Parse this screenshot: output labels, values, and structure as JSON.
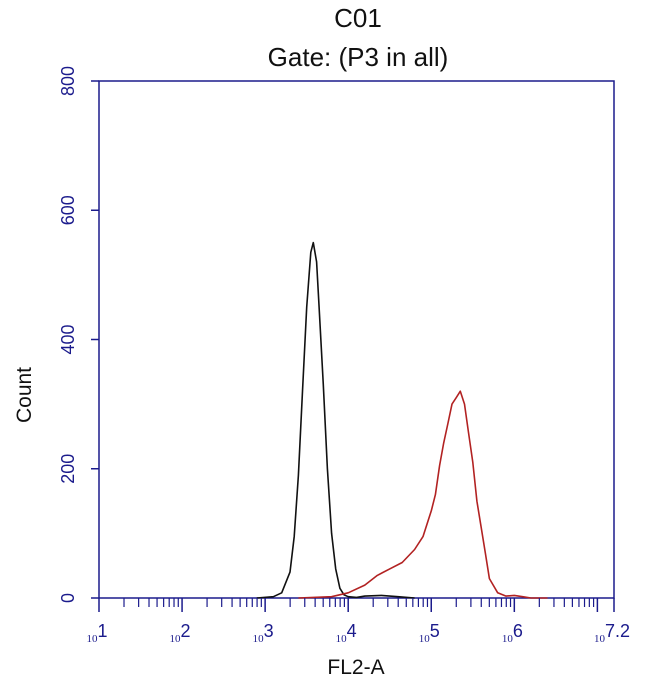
{
  "chart_data": {
    "type": "line",
    "title": "C01",
    "subtitle": "Gate: (P3 in all)",
    "xlabel": "FL2-A",
    "ylabel": "Count",
    "x_scale": "log",
    "xlim": [
      1,
      7.2
    ],
    "ylim": [
      0,
      800
    ],
    "yticks": [
      "0",
      "200",
      "400",
      "600",
      "800"
    ],
    "xticks": [
      {
        "base": "10",
        "exp": "1"
      },
      {
        "base": "10",
        "exp": "2"
      },
      {
        "base": "10",
        "exp": "3"
      },
      {
        "base": "10",
        "exp": "4"
      },
      {
        "base": "10",
        "exp": "5"
      },
      {
        "base": "10",
        "exp": "6"
      },
      {
        "base": "10",
        "exp": "7.2"
      }
    ],
    "grid": false,
    "legend": "none",
    "series": [
      {
        "color": "#111111",
        "x": [
          2.9,
          3.1,
          3.2,
          3.3,
          3.35,
          3.4,
          3.45,
          3.5,
          3.55,
          3.58,
          3.62,
          3.65,
          3.7,
          3.75,
          3.8,
          3.85,
          3.9,
          3.95,
          4.0,
          4.1,
          4.2,
          4.4,
          4.6,
          4.8
        ],
        "y": [
          0,
          2,
          8,
          40,
          95,
          190,
          320,
          450,
          535,
          550,
          520,
          450,
          330,
          200,
          100,
          45,
          15,
          5,
          2,
          1,
          3,
          4,
          2,
          0
        ]
      },
      {
        "color": "#b22222",
        "x": [
          3.4,
          3.8,
          4.0,
          4.2,
          4.35,
          4.5,
          4.65,
          4.8,
          4.9,
          5.0,
          5.05,
          5.1,
          5.15,
          5.2,
          5.25,
          5.3,
          5.35,
          5.4,
          5.45,
          5.5,
          5.55,
          5.6,
          5.65,
          5.7,
          5.8,
          5.9,
          6.0,
          6.1,
          6.2,
          6.4
        ],
        "y": [
          0,
          2,
          8,
          20,
          35,
          45,
          55,
          75,
          95,
          135,
          160,
          205,
          240,
          270,
          300,
          310,
          320,
          300,
          255,
          210,
          150,
          110,
          70,
          30,
          8,
          3,
          4,
          2,
          0,
          0
        ]
      }
    ]
  }
}
